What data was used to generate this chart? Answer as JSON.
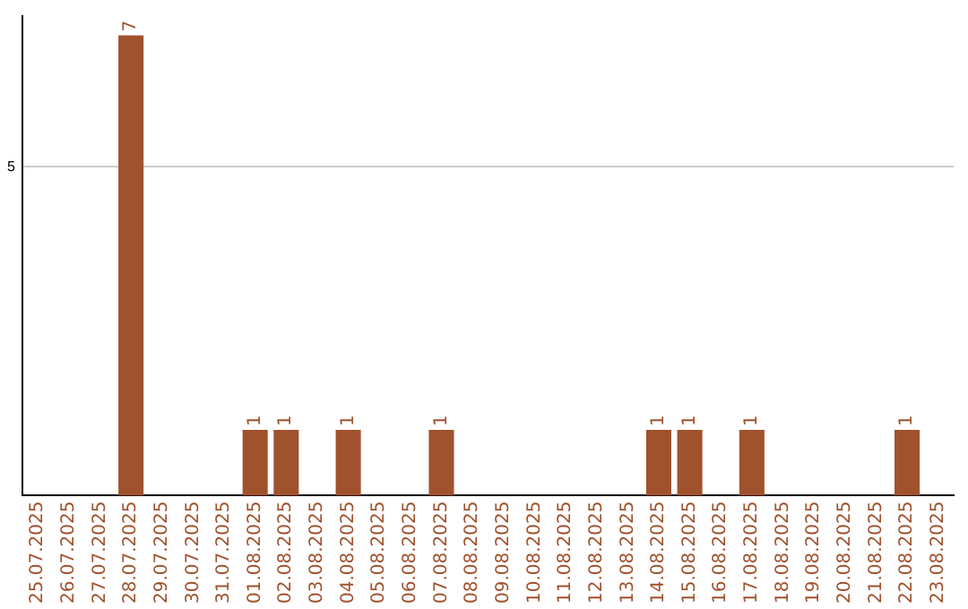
{
  "chart_data": {
    "type": "bar",
    "categories": [
      "25.07.2025",
      "26.07.2025",
      "27.07.2025",
      "28.07.2025",
      "29.07.2025",
      "30.07.2025",
      "31.07.2025",
      "01.08.2025",
      "02.08.2025",
      "03.08.2025",
      "04.08.2025",
      "05.08.2025",
      "06.08.2025",
      "07.08.2025",
      "08.08.2025",
      "09.08.2025",
      "10.08.2025",
      "11.08.2025",
      "12.08.2025",
      "13.08.2025",
      "14.08.2025",
      "15.08.2025",
      "16.08.2025",
      "17.08.2025",
      "18.08.2025",
      "19.08.2025",
      "20.08.2025",
      "21.08.2025",
      "22.08.2025",
      "23.08.2025"
    ],
    "values": [
      0,
      0,
      0,
      7,
      0,
      0,
      0,
      1,
      1,
      0,
      1,
      0,
      0,
      1,
      0,
      0,
      0,
      0,
      0,
      0,
      1,
      1,
      0,
      1,
      0,
      0,
      0,
      0,
      1,
      0
    ],
    "value_labels": [
      null,
      null,
      null,
      "7",
      null,
      null,
      null,
      "1",
      "1",
      null,
      "1",
      null,
      null,
      "1",
      null,
      null,
      null,
      null,
      null,
      null,
      "1",
      "1",
      null,
      "1",
      null,
      null,
      null,
      null,
      "1",
      null
    ],
    "color": "#a0522d",
    "ylim": [
      0,
      7.3
    ],
    "yticks": [
      5
    ],
    "grid": "y"
  }
}
